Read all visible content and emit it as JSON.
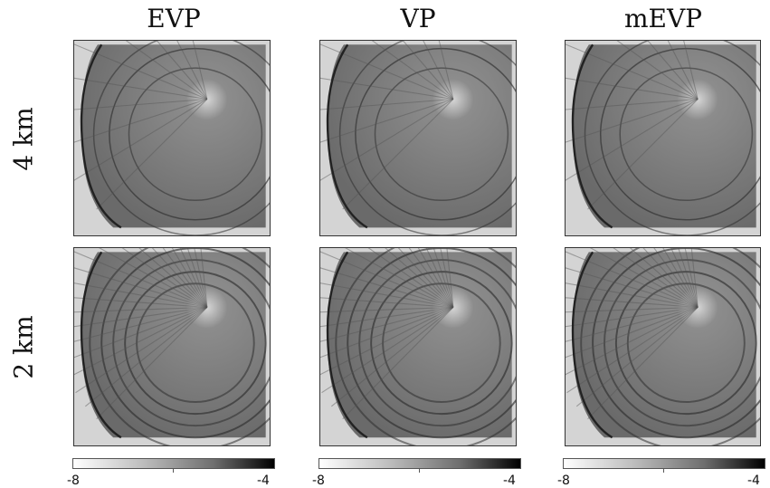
{
  "chart_data": {
    "type": "heatmap",
    "columns": [
      "EVP",
      "VP",
      "mEVP"
    ],
    "rows": [
      "4 km",
      "2 km"
    ],
    "colorbar": {
      "min": -8,
      "max": -4,
      "min_label": "-8",
      "max_label": "-4",
      "colormap": "white-to-black"
    }
  }
}
